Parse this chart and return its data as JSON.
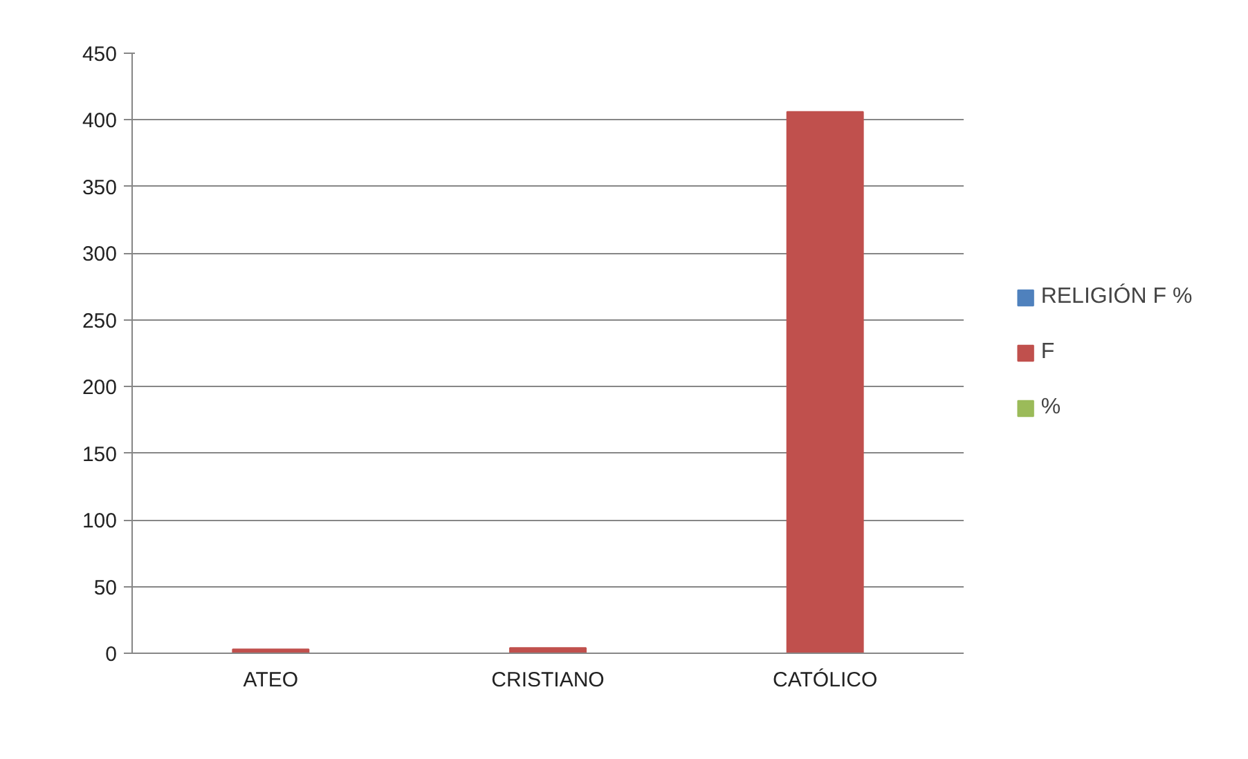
{
  "chart_data": {
    "type": "bar",
    "categories": [
      "ATEO",
      "CRISTIANO",
      "CATÓLICO"
    ],
    "series": [
      {
        "name": "RELIGIÓN F %",
        "color": "#4f81bd",
        "values": [
          null,
          null,
          null
        ]
      },
      {
        "name": "F",
        "color": "#c0504d",
        "values": [
          3,
          4,
          406
        ]
      },
      {
        "name": "%",
        "color": "#9bbb59",
        "values": [
          null,
          null,
          null
        ]
      }
    ],
    "ylim": [
      0,
      450
    ],
    "yticks": [
      0,
      50,
      100,
      150,
      200,
      250,
      300,
      350,
      400,
      450
    ],
    "grid": "y",
    "legend": "right"
  }
}
